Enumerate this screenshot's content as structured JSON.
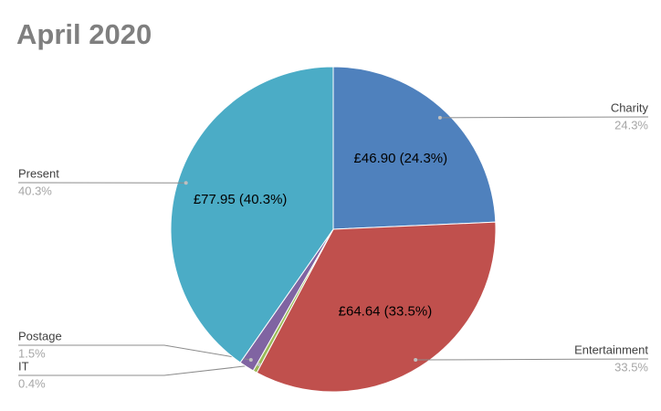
{
  "chart_data": {
    "type": "pie",
    "title": "April 2020",
    "categories": [
      "Charity",
      "Entertainment",
      "IT",
      "Postage",
      "Present"
    ],
    "values": [
      24.3,
      33.5,
      0.4,
      1.5,
      40.3
    ],
    "value_labels": [
      "24.3%",
      "33.5%",
      "0.4%",
      "1.5%",
      "40.3%"
    ],
    "inner_labels": [
      "£46.90 (24.3%)",
      "£64.64 (33.5%)",
      null,
      null,
      "£77.95 (40.3%)"
    ],
    "colors": [
      "#4f81bd",
      "#c0504d",
      "#9bbb59",
      "#8064a2",
      "#4bacc6"
    ]
  }
}
